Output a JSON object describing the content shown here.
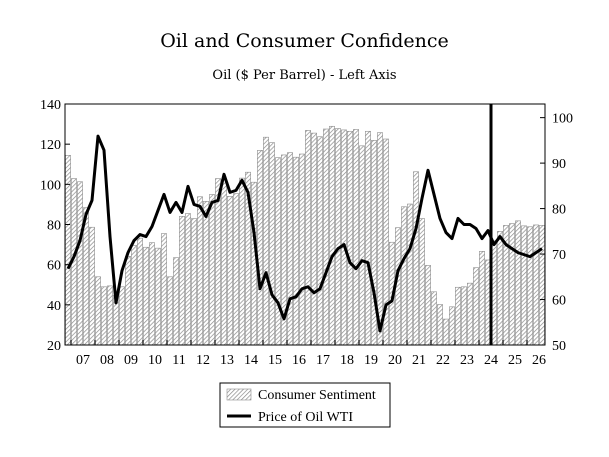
{
  "chart_data": {
    "type": "bar",
    "title": "Oil and Consumer Confidence",
    "subtitle": "Oil ($ Per Barrel) - Left Axis",
    "grid": false,
    "legend_position": "bottom-center",
    "x_axis": {
      "labels": [
        "07",
        "08",
        "09",
        "10",
        "11",
        "12",
        "13",
        "14",
        "15",
        "16",
        "17",
        "18",
        "19",
        "20",
        "21",
        "22",
        "23",
        "24",
        "25",
        "26"
      ],
      "start_year": 2006.75,
      "end_year": 2026.75
    },
    "y_left": {
      "min": 20,
      "max": 140,
      "ticks": [
        20,
        40,
        60,
        80,
        100,
        120,
        140
      ]
    },
    "y_right": {
      "min": 50,
      "max": 103,
      "ticks": [
        50,
        60,
        70,
        80,
        90,
        100
      ]
    },
    "marker_line": {
      "x": 2024.5
    },
    "series": [
      {
        "name": "Consumer Sentiment",
        "kind": "bar",
        "axis": "right",
        "x": [
          2006.875,
          2007.125,
          2007.375,
          2007.625,
          2007.875,
          2008.125,
          2008.375,
          2008.625,
          2008.875,
          2009.125,
          2009.375,
          2009.625,
          2009.875,
          2010.125,
          2010.375,
          2010.625,
          2010.875,
          2011.125,
          2011.375,
          2011.625,
          2011.875,
          2012.125,
          2012.375,
          2012.625,
          2012.875,
          2013.125,
          2013.375,
          2013.625,
          2013.875,
          2014.125,
          2014.375,
          2014.625,
          2014.875,
          2015.125,
          2015.375,
          2015.625,
          2015.875,
          2016.125,
          2016.375,
          2016.625,
          2016.875,
          2017.125,
          2017.375,
          2017.625,
          2017.875,
          2018.125,
          2018.375,
          2018.625,
          2018.875,
          2019.125,
          2019.375,
          2019.625,
          2019.875,
          2020.125,
          2020.375,
          2020.625,
          2020.875,
          2021.125,
          2021.375,
          2021.625,
          2021.875,
          2022.125,
          2022.375,
          2022.625,
          2022.875,
          2023.125,
          2023.375,
          2023.625,
          2023.875,
          2024.125,
          2024.375,
          2024.625,
          2024.875,
          2025.125,
          2025.375,
          2025.625,
          2025.875,
          2026.125,
          2026.375,
          2026.625
        ],
        "values": [
          91.7,
          86.6,
          85.9,
          80.2,
          75.9,
          65.0,
          62.8,
          63.0,
          60.9,
          62.8,
          69.5,
          71.9,
          73.5,
          71.5,
          72.5,
          71.3,
          74.5,
          65.0,
          69.2,
          78.3,
          78.9,
          77.8,
          82.6,
          81.6,
          83.1,
          86.6,
          86.4,
          82.7,
          83.3,
          86.7,
          88.0,
          85.8,
          92.8,
          95.7,
          94.5,
          91.2,
          91.8,
          92.3,
          91.3,
          92.0,
          97.2,
          96.6,
          95.8,
          97.5,
          98.1,
          97.6,
          97.3,
          97.0,
          97.4,
          93.8,
          97.0,
          95.0,
          96.7,
          95.3,
          72.6,
          75.8,
          80.4,
          81.0,
          88.1,
          77.8,
          67.5,
          61.7,
          58.9,
          55.7,
          58.4,
          62.7,
          62.8,
          63.6,
          67.0,
          70.6,
          68.7,
          72.9,
          75.0,
          76.3,
          76.7,
          77.3,
          76.2,
          76.0,
          76.4,
          76.3
        ]
      },
      {
        "name": "Price of Oil WTI",
        "kind": "line",
        "axis": "left",
        "x": [
          2006.875,
          2007.125,
          2007.375,
          2007.625,
          2007.875,
          2008.125,
          2008.375,
          2008.625,
          2008.875,
          2009.125,
          2009.375,
          2009.625,
          2009.875,
          2010.125,
          2010.375,
          2010.625,
          2010.875,
          2011.125,
          2011.375,
          2011.625,
          2011.875,
          2012.125,
          2012.375,
          2012.625,
          2012.875,
          2013.125,
          2013.375,
          2013.625,
          2013.875,
          2014.125,
          2014.375,
          2014.625,
          2014.875,
          2015.125,
          2015.375,
          2015.625,
          2015.875,
          2016.125,
          2016.375,
          2016.625,
          2016.875,
          2017.125,
          2017.375,
          2017.625,
          2017.875,
          2018.125,
          2018.375,
          2018.625,
          2018.875,
          2019.125,
          2019.375,
          2019.625,
          2019.875,
          2020.125,
          2020.375,
          2020.625,
          2020.875,
          2021.125,
          2021.375,
          2021.625,
          2021.875,
          2022.125,
          2022.375,
          2022.625,
          2022.875,
          2023.125,
          2023.375,
          2023.625,
          2023.875,
          2024.125,
          2024.375,
          2024.625,
          2024.875,
          2025.125,
          2025.375,
          2025.625,
          2025.875,
          2026.125,
          2026.375,
          2026.625
        ],
        "values": [
          58,
          64,
          72,
          85,
          92,
          124,
          117,
          74,
          41,
          57,
          66,
          72,
          75,
          74,
          79,
          87,
          95,
          86,
          91,
          86,
          99,
          90,
          89,
          84,
          91,
          92,
          105,
          96,
          97,
          102,
          96,
          76,
          48,
          56,
          45,
          41,
          33,
          43,
          44,
          48,
          49,
          46,
          48,
          56,
          64,
          68,
          70,
          61,
          58,
          62,
          61,
          46,
          27,
          40,
          42,
          57,
          63,
          68,
          78,
          93,
          107,
          95,
          83,
          76,
          73,
          83,
          80,
          80,
          78,
          73,
          77,
          70,
          74,
          70,
          68,
          66,
          65,
          64,
          66,
          68
        ]
      }
    ]
  }
}
